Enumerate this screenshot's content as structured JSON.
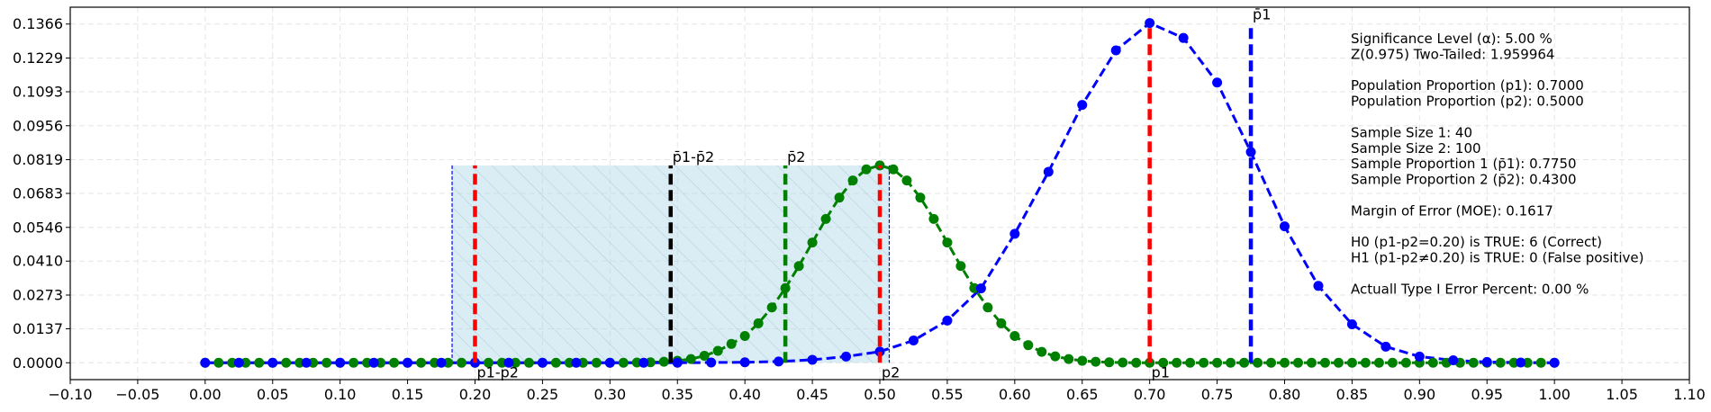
{
  "chart_data": {
    "type": "line",
    "xlim": [
      -0.1,
      1.1
    ],
    "ylim": [
      -0.0068,
      0.1434
    ],
    "x_ticks": [
      -0.1,
      -0.05,
      0.0,
      0.05,
      0.1,
      0.15,
      0.2,
      0.25,
      0.3,
      0.35,
      0.4,
      0.45,
      0.5,
      0.55,
      0.6,
      0.65,
      0.7,
      0.75,
      0.8,
      0.85,
      0.9,
      0.95,
      1.0,
      1.05,
      1.1
    ],
    "x_tick_labels": [
      "−0.10",
      "−0.05",
      "0.00",
      "0.05",
      "0.10",
      "0.15",
      "0.20",
      "0.25",
      "0.30",
      "0.35",
      "0.40",
      "0.45",
      "0.50",
      "0.55",
      "0.60",
      "0.65",
      "0.70",
      "0.75",
      "0.80",
      "0.85",
      "0.90",
      "0.95",
      "1.00",
      "1.05",
      "1.10"
    ],
    "y_ticks": [
      0.0,
      0.0137,
      0.0273,
      0.041,
      0.0546,
      0.0683,
      0.0819,
      0.0956,
      0.1093,
      0.1229,
      0.1366
    ],
    "y_tick_labels": [
      "0.0000",
      "0.0137",
      "0.0273",
      "0.0410",
      "0.0546",
      "0.0683",
      "0.0819",
      "0.0956",
      "0.1093",
      "0.1229",
      "0.1366"
    ],
    "grid": true,
    "series": [
      {
        "color": "#0000ff",
        "style": "dashed",
        "marker": "circle",
        "x": [
          0,
          0.025,
          0.05,
          0.075,
          0.1,
          0.125,
          0.15,
          0.175,
          0.2,
          0.225,
          0.25,
          0.275,
          0.3,
          0.325,
          0.35,
          0.375,
          0.4,
          0.425,
          0.45,
          0.475,
          0.5,
          0.525,
          0.55,
          0.575,
          0.6,
          0.625,
          0.65,
          0.675,
          0.7,
          0.725,
          0.75,
          0.775,
          0.8,
          0.825,
          0.85,
          0.875,
          0.9,
          0.925,
          0.95,
          0.975,
          1.0
        ],
        "y": [
          0,
          0,
          0,
          0,
          0,
          0,
          0,
          0,
          0,
          0,
          0,
          0,
          0,
          0,
          0,
          0.0001,
          0.0002,
          0.0005,
          0.0012,
          0.0025,
          0.0045,
          0.009,
          0.017,
          0.03,
          0.052,
          0.077,
          0.104,
          0.126,
          0.137,
          0.131,
          0.113,
          0.085,
          0.055,
          0.031,
          0.0155,
          0.0065,
          0.0025,
          0.001,
          0.0003,
          0.0001,
          0
        ]
      },
      {
        "color": "#008000",
        "style": "dashed",
        "marker": "circle",
        "x": [
          0,
          0.01,
          0.02,
          0.03,
          0.04,
          0.05,
          0.06,
          0.07,
          0.08,
          0.09,
          0.1,
          0.11,
          0.12,
          0.13,
          0.14,
          0.15,
          0.16,
          0.17,
          0.18,
          0.19,
          0.2,
          0.21,
          0.22,
          0.23,
          0.24,
          0.25,
          0.26,
          0.27,
          0.28,
          0.29,
          0.3,
          0.31,
          0.32,
          0.33,
          0.34,
          0.35,
          0.36,
          0.37,
          0.38,
          0.39,
          0.4,
          0.41,
          0.42,
          0.43,
          0.44,
          0.45,
          0.46,
          0.47,
          0.48,
          0.49,
          0.5,
          0.51,
          0.52,
          0.53,
          0.54,
          0.55,
          0.56,
          0.57,
          0.58,
          0.59,
          0.6,
          0.61,
          0.62,
          0.63,
          0.64,
          0.65,
          0.66,
          0.67,
          0.68,
          0.69,
          0.7,
          0.71,
          0.72,
          0.73,
          0.74,
          0.75,
          0.76,
          0.77,
          0.78,
          0.79,
          0.8,
          0.81,
          0.82,
          0.83,
          0.84,
          0.85,
          0.86,
          0.87,
          0.88,
          0.89,
          0.9,
          0.91,
          0.92,
          0.93,
          0.94,
          0.95,
          0.96,
          0.97,
          0.98,
          0.99,
          1.0
        ],
        "y": [
          0,
          0,
          0,
          0,
          0,
          0,
          0,
          0,
          0,
          0,
          0,
          0,
          0,
          0,
          0,
          0,
          0,
          0,
          0,
          0,
          0,
          0,
          0,
          0,
          0,
          0,
          0,
          0,
          0,
          0,
          0,
          0,
          0.0001,
          0.0002,
          0.0004,
          0.0008,
          0.0015,
          0.0028,
          0.0048,
          0.0076,
          0.0108,
          0.0159,
          0.0223,
          0.0301,
          0.039,
          0.0485,
          0.058,
          0.0666,
          0.0735,
          0.078,
          0.0796,
          0.078,
          0.0735,
          0.0666,
          0.058,
          0.0485,
          0.039,
          0.0301,
          0.0223,
          0.0159,
          0.0108,
          0.0071,
          0.0044,
          0.0026,
          0.0015,
          0.0008,
          0.0004,
          0.0002,
          0.0001,
          0,
          0,
          0,
          0,
          0,
          0,
          0,
          0,
          0,
          0,
          0,
          0,
          0,
          0,
          0,
          0,
          0,
          0,
          0,
          0,
          0,
          0,
          0,
          0,
          0,
          0,
          0,
          0,
          0,
          0,
          0,
          0
        ]
      }
    ],
    "shaded_region": {
      "x0": 0.183,
      "x1": 0.507,
      "y_top": 0.0796,
      "fill": "#add8e6"
    },
    "vlines": [
      {
        "x": 0.2,
        "y0": 0,
        "y1": 0.0796,
        "color": "#ff0000",
        "label": "p1-p2",
        "label_pos": "bottom"
      },
      {
        "x": 0.345,
        "y0": 0,
        "y1": 0.0796,
        "color": "#000000",
        "label": "p̄1-p̄2",
        "label_pos": "top"
      },
      {
        "x": 0.43,
        "y0": 0,
        "y1": 0.0796,
        "color": "#008000",
        "label": "p̄2",
        "label_pos": "top"
      },
      {
        "x": 0.5,
        "y0": 0,
        "y1": 0.0796,
        "color": "#ff0000",
        "label": "p2",
        "label_pos": "bottom"
      },
      {
        "x": 0.7,
        "y0": 0,
        "y1": 0.137,
        "color": "#ff0000",
        "label": "p1",
        "label_pos": "bottom"
      },
      {
        "x": 0.775,
        "y0": 0,
        "y1": 0.137,
        "color": "#0000ff",
        "label": "p̄1",
        "label_pos": "top"
      }
    ]
  },
  "info_text": [
    "Significance Level (α): 5.00 %",
    "Z(0.975) Two-Tailed: 1.959964",
    "",
    "Population Proportion (p1): 0.7000",
    "Population Proportion (p2): 0.5000",
    "",
    "Sample Size 1: 40",
    "Sample Size 2: 100",
    "Sample Proportion 1 (p̄1): 0.7750",
    "Sample Proportion 2 (p̄2): 0.4300",
    "",
    "Margin of Error (MOE): 0.1617",
    "",
    "H0 (p1-p2=0.20) is TRUE: 6 (Correct)",
    "H1 (p1-p2≠0.20) is TRUE: 0 (False positive)",
    "",
    "Actuall Type I Error Percent: 0.00 %"
  ]
}
